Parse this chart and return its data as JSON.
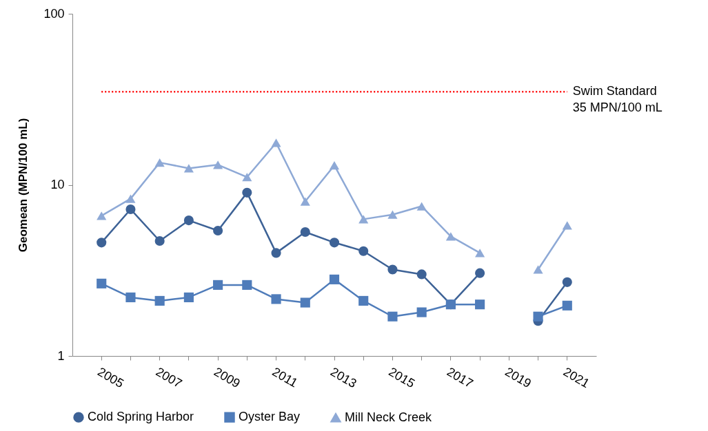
{
  "chart_data": {
    "type": "line",
    "ylabel": "Geomean  (MPN/100 mL)",
    "log": true,
    "ylim": [
      1,
      100
    ],
    "yticks": [
      1,
      10,
      100
    ],
    "grid": false,
    "legend": "bottom",
    "categories": [
      "2005",
      null,
      "2007",
      null,
      "2009",
      null,
      "2011",
      null,
      "2013",
      null,
      "2015",
      null,
      "2017",
      null,
      "2019",
      null,
      "2021"
    ],
    "series": [
      {
        "name": "Cold Spring Harbor",
        "color": "#3d6296",
        "marker": "circle",
        "values": [
          4.6,
          7.2,
          4.7,
          6.2,
          5.4,
          9.0,
          4.0,
          5.3,
          4.6,
          4.1,
          3.2,
          3.0,
          2.0,
          3.05,
          null,
          1.6,
          2.7
        ]
      },
      {
        "name": "Oyster Bay",
        "color": "#4f7cba",
        "marker": "square",
        "values": [
          2.65,
          2.2,
          2.1,
          2.2,
          2.6,
          2.6,
          2.15,
          2.05,
          2.8,
          2.1,
          1.7,
          1.8,
          2.0,
          2.0,
          null,
          1.7,
          1.97
        ]
      },
      {
        "name": "Mill Neck Creek",
        "color": "#8ea9d6",
        "marker": "triangle",
        "values": [
          6.6,
          8.3,
          13.5,
          12.5,
          13.1,
          11.1,
          17.6,
          8.0,
          13.0,
          6.3,
          6.7,
          7.5,
          5.0,
          4.0,
          null,
          3.2,
          5.8
        ]
      }
    ],
    "ref_lines": [
      {
        "axis": "y",
        "value": 35,
        "label": "Swim Standard\n35 MPN/100 mL",
        "color": "#ff0000",
        "line_style": "dotted"
      }
    ]
  }
}
